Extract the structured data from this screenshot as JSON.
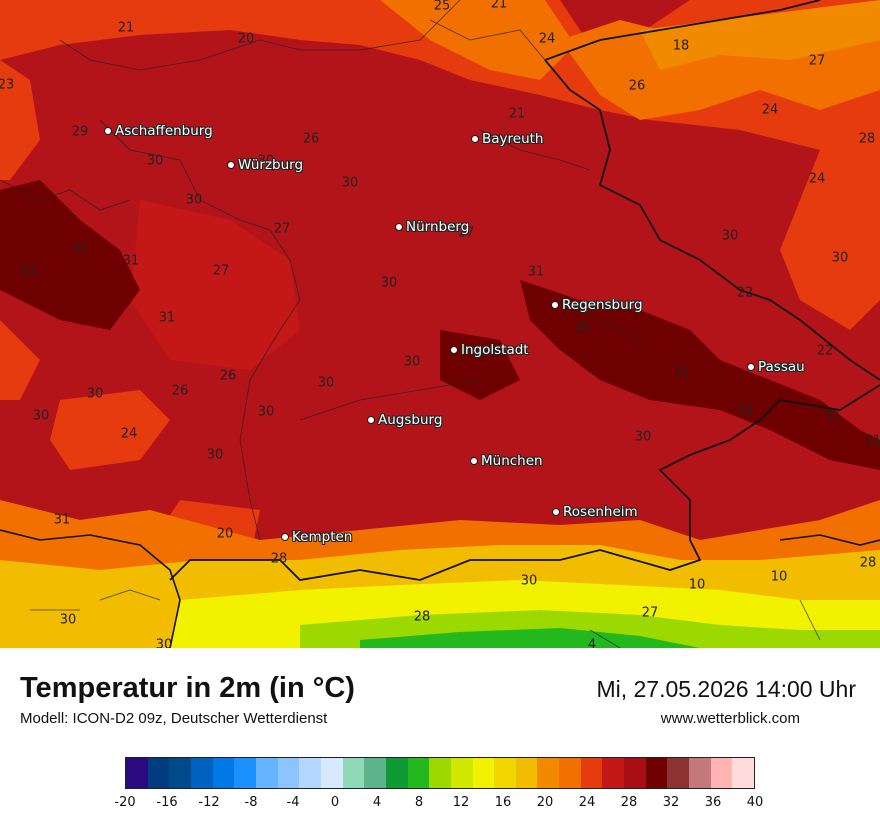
{
  "title": "Temperatur in 2m (in °C)",
  "model": "Modell: ICON-D2 09z, Deutscher Wetterdienst",
  "datetime": "Mi, 27.05.2026 14:00 Uhr",
  "website": "www.wetterblick.com",
  "cities": [
    {
      "name": "Aschaffenburg"
    },
    {
      "name": "Würzburg"
    },
    {
      "name": "Bayreuth"
    },
    {
      "name": "Nürnberg"
    },
    {
      "name": "Regensburg"
    },
    {
      "name": "Ingolstadt"
    },
    {
      "name": "Passau"
    },
    {
      "name": "Augsburg"
    },
    {
      "name": "München"
    },
    {
      "name": "Rosenheim"
    },
    {
      "name": "Kempten"
    }
  ],
  "temperature_labels": [
    "25",
    "21",
    "21",
    "20",
    "24",
    "18",
    "23",
    "27",
    "26",
    "21",
    "24",
    "29",
    "26",
    "28",
    "30",
    "30",
    "30",
    "24",
    "30",
    "27",
    "27",
    "30",
    "31",
    "31",
    "31",
    "27",
    "30",
    "31",
    "22",
    "31",
    "31",
    "22",
    "30",
    "30",
    "26",
    "26",
    "31",
    "30",
    "30",
    "30",
    "30",
    "24",
    "31",
    "30",
    "30",
    "31",
    "31",
    "20",
    "31",
    "28",
    "10",
    "10",
    "28",
    "30",
    "30",
    "28",
    "27",
    "30",
    "4"
  ],
  "legend": {
    "colors": [
      "#2b0a80",
      "#003c80",
      "#014a8a",
      "#0061c0",
      "#0079e6",
      "#1a90ff",
      "#66b3ff",
      "#8cc4ff",
      "#b3d7ff",
      "#d6e9ff",
      "#8fd9b8",
      "#5db38a",
      "#109a36",
      "#22b81e",
      "#9bd900",
      "#d0e800",
      "#f2f200",
      "#f2d600",
      "#f2bd00",
      "#f28a00",
      "#f27000",
      "#e63a0f",
      "#c41818",
      "#a80f14",
      "#6e0000",
      "#8c3232",
      "#c47878",
      "#ffb4b4",
      "#ffdcdc"
    ],
    "ticks": [
      "-20",
      "-16",
      "-12",
      "-8",
      "-4",
      "0",
      "4",
      "8",
      "12",
      "16",
      "20",
      "24",
      "28",
      "32",
      "36",
      "40"
    ]
  }
}
